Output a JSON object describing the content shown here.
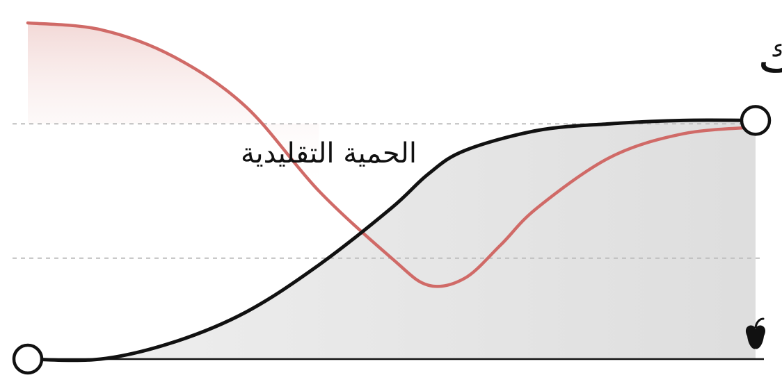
{
  "chart_data": {
    "type": "line",
    "title": "",
    "xlabel": "",
    "ylabel": "",
    "grid": false,
    "xlim": [
      0,
      1
    ],
    "ylim": [
      0,
      1
    ],
    "reference_lines": [
      0.7,
      0.3
    ],
    "series": [
      {
        "name": "",
        "color": "#d06a67",
        "fill": "#e8b7b5",
        "x": [
          0.0,
          0.1,
          0.2,
          0.3,
          0.4,
          0.5,
          0.55,
          0.6,
          0.65,
          0.7,
          0.8,
          0.9,
          1.0
        ],
        "y": [
          1.0,
          0.98,
          0.9,
          0.75,
          0.5,
          0.3,
          0.22,
          0.24,
          0.34,
          0.45,
          0.6,
          0.67,
          0.69
        ]
      },
      {
        "name": "",
        "color": "#111111",
        "fill": "#dddddd",
        "x": [
          0.0,
          0.1,
          0.2,
          0.3,
          0.4,
          0.5,
          0.55,
          0.6,
          0.7,
          0.8,
          0.9,
          1.0
        ],
        "y": [
          0.0,
          0.0,
          0.05,
          0.14,
          0.28,
          0.45,
          0.55,
          0.62,
          0.68,
          0.7,
          0.71,
          0.71
        ]
      }
    ],
    "annotations": [
      {
        "text": "الحمية التقليدية",
        "x": 0.3,
        "y": 0.57,
        "anchor": "end"
      },
      {
        "text": "وزنك",
        "x": 0.99,
        "y": 0.94,
        "anchor": "end"
      }
    ],
    "icons": [
      {
        "name": "apple-icon",
        "x": 1.0,
        "y": 0.02
      }
    ]
  }
}
